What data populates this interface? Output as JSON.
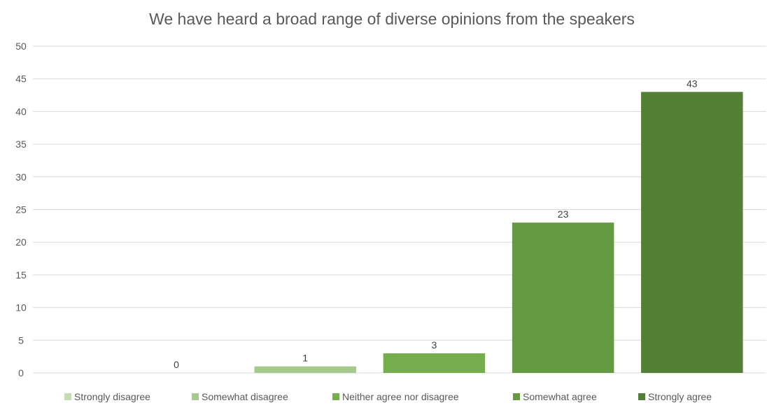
{
  "chart_data": {
    "type": "bar",
    "title": "We have heard a broad range of diverse opinions from the speakers",
    "xlabel": "",
    "ylabel": "",
    "ylim": [
      0,
      50
    ],
    "yticks": [
      0,
      5,
      10,
      15,
      20,
      25,
      30,
      35,
      40,
      45,
      50
    ],
    "grid": true,
    "legend_position": "bottom",
    "categories": [
      "Strongly disagree",
      "Somewhat disagree",
      "Neither agree nor disagree",
      "Somewhat agree",
      "Strongly agree"
    ],
    "values": [
      0,
      1,
      3,
      23,
      43
    ],
    "colors": [
      "#c5dcb4",
      "#a6c98d",
      "#76ad4d",
      "#659a42",
      "#538035"
    ]
  }
}
